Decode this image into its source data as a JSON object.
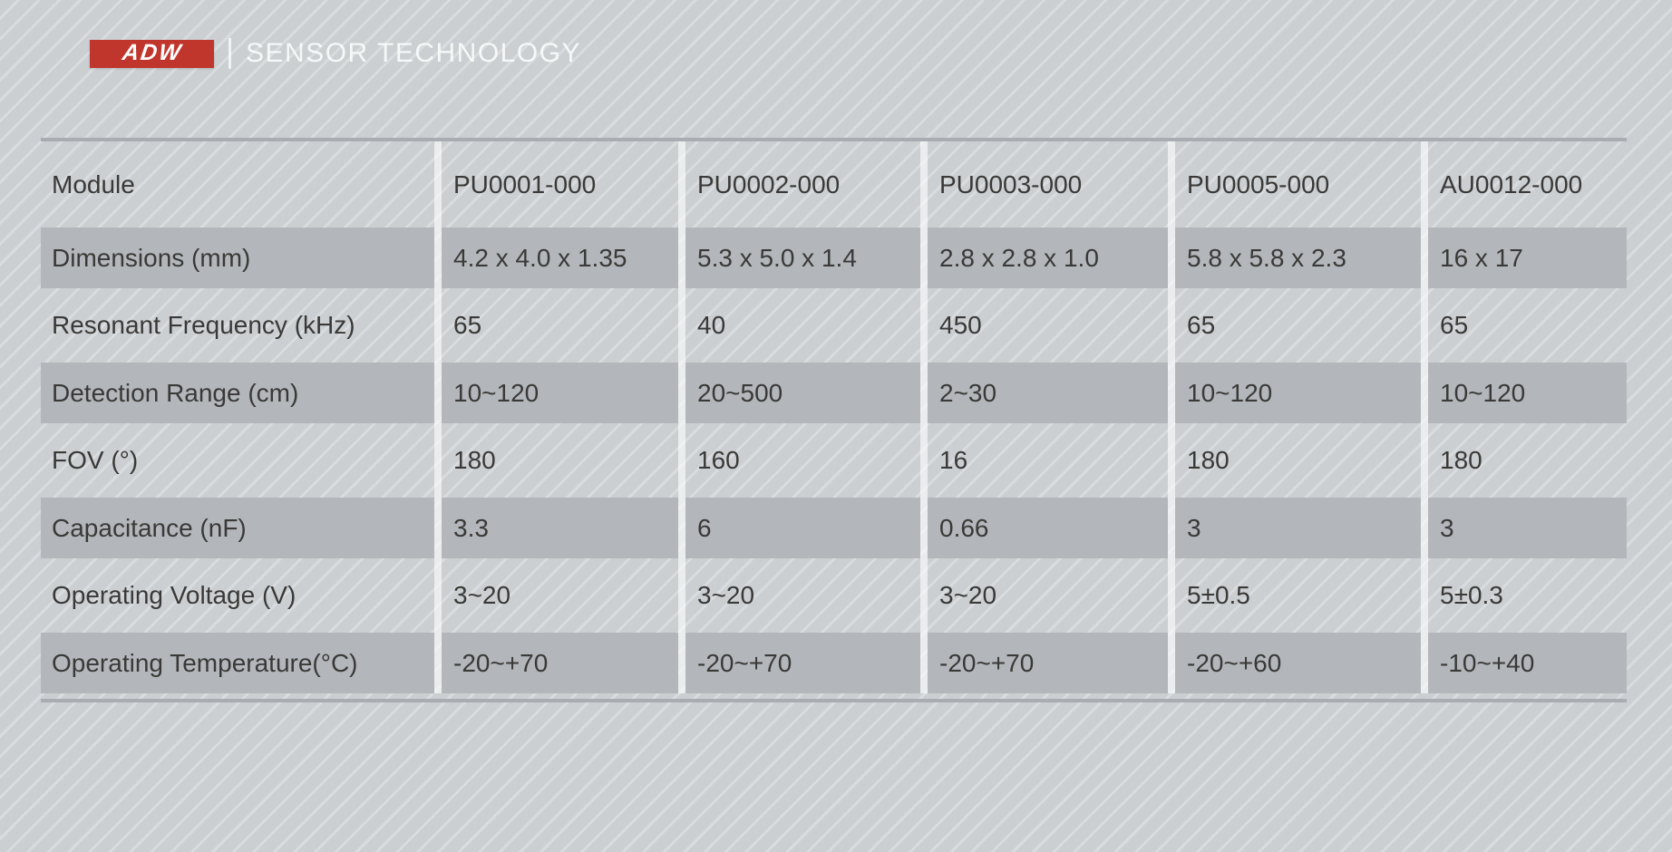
{
  "brand": {
    "logo_text": "ADW",
    "tagline": "SENSOR TECHNOLOGY"
  },
  "spec_table": {
    "header": {
      "label": "Module",
      "columns": [
        "PU0001-000",
        "PU0002-000",
        "PU0003-000",
        "PU0005-000",
        "AU0012-000"
      ]
    },
    "rows": [
      {
        "label": "Dimensions (mm)",
        "values": [
          "4.2 x 4.0 x 1.35",
          "5.3 x 5.0 x 1.4",
          "2.8 x 2.8 x 1.0",
          "5.8 x 5.8 x 2.3",
          "16 x 17"
        ]
      },
      {
        "label": "Resonant Frequency (kHz)",
        "values": [
          "65",
          "40",
          "450",
          "65",
          "65"
        ]
      },
      {
        "label": "Detection Range (cm)",
        "values": [
          "10~120",
          "20~500",
          "2~30",
          "10~120",
          "10~120"
        ]
      },
      {
        "label": "FOV (°)",
        "values": [
          "180",
          "160",
          "16",
          "180",
          "180"
        ]
      },
      {
        "label": "Capacitance (nF)",
        "values": [
          "3.3",
          "6",
          "0.66",
          "3",
          "3"
        ]
      },
      {
        "label": "Operating Voltage (V)",
        "values": [
          "3~20",
          "3~20",
          "3~20",
          "5±0.5",
          "5±0.3"
        ]
      },
      {
        "label": "Operating Temperature(°C)",
        "values": [
          "-20~+70",
          "-20~+70",
          "-20~+70",
          "-20~+60",
          "-10~+40"
        ]
      }
    ]
  },
  "colors": {
    "logo_red": "#c1362c",
    "solid_row_bg": "#b3b7bb",
    "table_border": "#a9adb2",
    "text": "#3a3937",
    "page_base": "#cbcfd2",
    "page_stripe": "#d9dcde"
  }
}
